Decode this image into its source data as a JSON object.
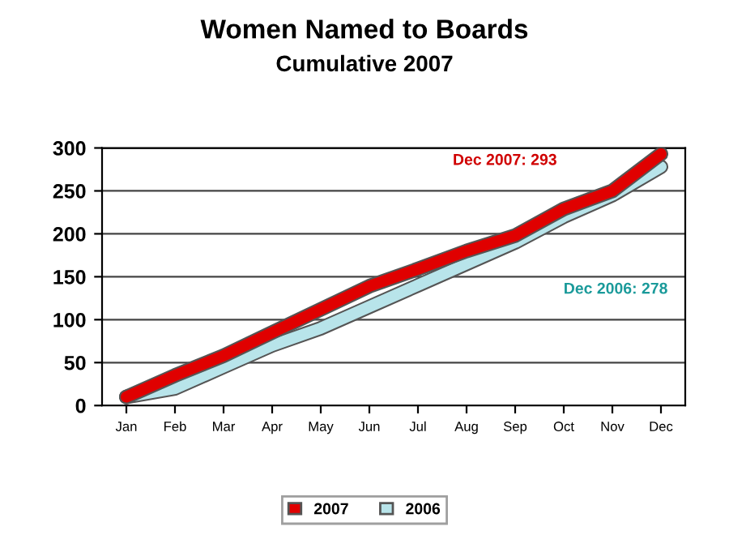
{
  "chart_data": {
    "type": "line",
    "title": "Women Named to Boards",
    "subtitle": "Cumulative 2007",
    "categories": [
      "Jan",
      "Feb",
      "Mar",
      "Apr",
      "May",
      "Jun",
      "Jul",
      "Aug",
      "Sep",
      "Oct",
      "Nov",
      "Dec"
    ],
    "series": [
      {
        "name": "2007",
        "color": "#e00000",
        "values": [
          10,
          35,
          58,
          85,
          112,
          139,
          159,
          180,
          198,
          229,
          250,
          293
        ]
      },
      {
        "name": "2006",
        "color": "#b8e4ea",
        "values": [
          10,
          20,
          45,
          70,
          90,
          115,
          140,
          165,
          190,
          220,
          245,
          278
        ]
      }
    ],
    "ylim": [
      0,
      300
    ],
    "yticks": [
      0,
      50,
      100,
      150,
      200,
      250,
      300
    ],
    "grid": "y",
    "legend": "bottom",
    "marker": "none",
    "line_style": "solid",
    "annotations": [
      "Dec 2007: 293",
      "Dec 2006: 278"
    ]
  }
}
